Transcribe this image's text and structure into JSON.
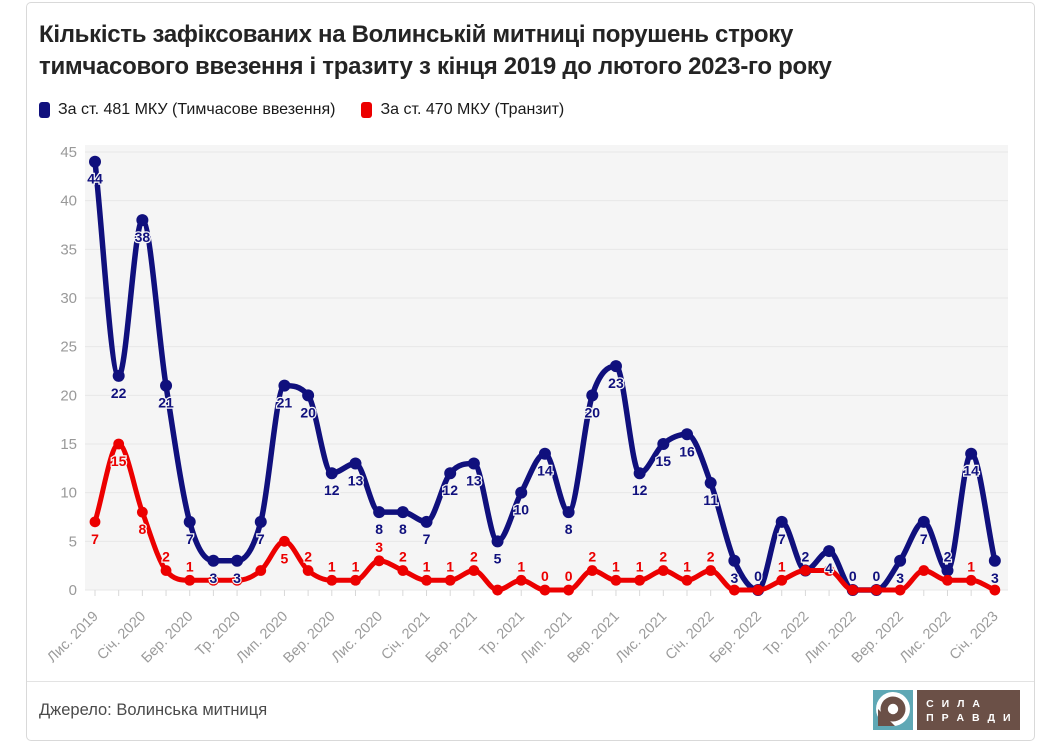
{
  "title_line1": "Кількість зафіксованих на Волинській митниці порушень строку",
  "title_line2": "тимчасового ввезення і тразиту з кінця 2019 до лютого 2023-го року",
  "legend": [
    {
      "label": "За ст. 481 МКУ (Тимчасове ввезення)",
      "color": "#10107d"
    },
    {
      "label": "За ст. 470 МКУ (Транзит)",
      "color": "#ec0000"
    }
  ],
  "source": "Джерело: Волинська митниця",
  "logo": {
    "line1": "С И Л А",
    "line2": "П Р А В Д И",
    "brown": "#6b5047",
    "teal": "#5fa8b5"
  },
  "chart_data": {
    "type": "line",
    "n_points": 39,
    "x_start": "Лис. 2019",
    "x_end": "Січ. 2023",
    "x_labels_every": 2,
    "x_tick_labels": [
      "Лис. 2019",
      "Січ. 2020",
      "Бер. 2020",
      "Тр. 2020",
      "Лип. 2020",
      "Вер. 2020",
      "Лис. 2020",
      "Січ. 2021",
      "Бер. 2021",
      "Тр. 2021",
      "Лип. 2021",
      "Вер. 2021",
      "Лис. 2021",
      "Січ. 2022",
      "Бер. 2022",
      "Тр. 2022",
      "Лип. 2022",
      "Вер. 2022",
      "Лис. 2022",
      "Січ. 2023"
    ],
    "ylim": [
      0,
      45
    ],
    "y_ticks": [
      0,
      5,
      10,
      15,
      20,
      25,
      30,
      35,
      40,
      45
    ],
    "grid": true,
    "plot_bg": "#f5f5f5",
    "grid_color": "#e7e7e7",
    "axis_text_color": "#999999",
    "legend_position": "top-left",
    "series": [
      {
        "name": "За ст. 481 МКУ (Тимчасове ввезення)",
        "color": "#10107d",
        "values": [
          44,
          22,
          38,
          21,
          7,
          3,
          3,
          7,
          21,
          20,
          12,
          13,
          8,
          8,
          7,
          12,
          13,
          5,
          10,
          14,
          8,
          20,
          23,
          12,
          15,
          16,
          11,
          3,
          0,
          7,
          2,
          4,
          0,
          0,
          3,
          7,
          2,
          14,
          3
        ],
        "label_placement": [
          "below",
          "below",
          "below",
          "below",
          "below",
          "below",
          "below",
          "below",
          "below",
          "below",
          "below",
          "below",
          "below",
          "below",
          "below",
          "below",
          "below",
          "below",
          "below",
          "below",
          "below",
          "below",
          "below",
          "below",
          "below",
          "below",
          "below",
          "below",
          "above",
          "below",
          "above",
          "below",
          "above",
          "above",
          "below",
          "below",
          "above",
          "below",
          "below"
        ]
      },
      {
        "name": "За ст. 470 МКУ (Транзит)",
        "color": "#ec0000",
        "values": [
          7,
          15,
          8,
          2,
          1,
          1,
          1,
          2,
          5,
          2,
          1,
          1,
          3,
          2,
          1,
          1,
          2,
          0,
          1,
          0,
          0,
          2,
          1,
          1,
          2,
          1,
          2,
          0,
          0,
          1,
          2,
          2,
          0,
          0,
          0,
          2,
          1,
          1,
          0
        ],
        "label_placement": [
          "below",
          "below",
          "below",
          "above",
          "above",
          "hidden",
          "hidden",
          "hidden",
          "below",
          "above",
          "above",
          "above",
          "above",
          "above",
          "above",
          "above",
          "above",
          "hidden",
          "above",
          "above",
          "above",
          "above",
          "above",
          "above",
          "above",
          "above",
          "above",
          "hidden",
          "hidden",
          "above",
          "hidden",
          "hidden",
          "hidden",
          "hidden",
          "hidden",
          "hidden",
          "hidden",
          "above",
          "hidden"
        ]
      }
    ]
  }
}
